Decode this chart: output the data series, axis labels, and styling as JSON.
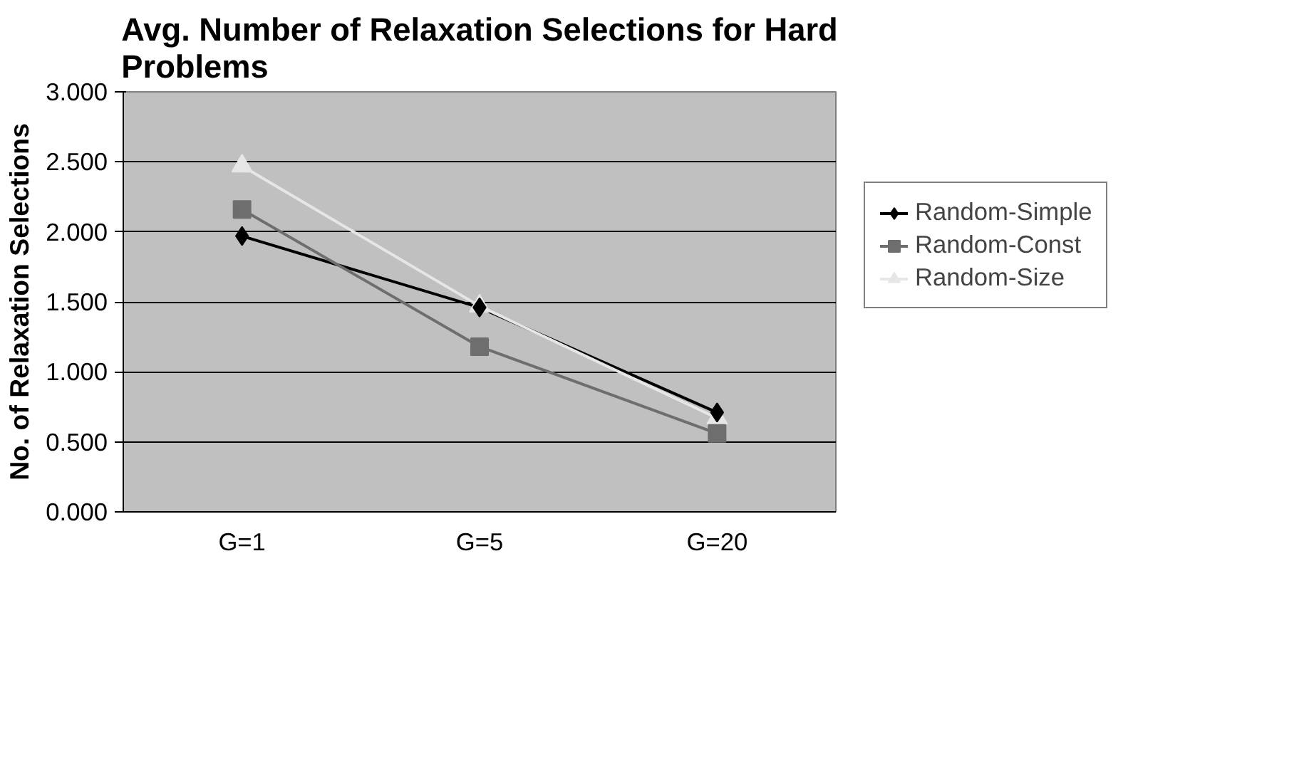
{
  "chart_data": {
    "type": "line",
    "title": "Avg. Number of Relaxation Selections for Hard Problems",
    "ylabel": "No. of Relaxation Selections",
    "categories": [
      "G=1",
      "G=5",
      "G=20"
    ],
    "series": [
      {
        "name": "Random-Simple",
        "color": "#000000",
        "marker": "diamond",
        "values": [
          1.97,
          1.46,
          0.71
        ]
      },
      {
        "name": "Random-Const",
        "color": "#6e6e6e",
        "marker": "square",
        "values": [
          2.16,
          1.18,
          0.56
        ]
      },
      {
        "name": "Random-Size",
        "color": "#e6e6e6",
        "marker": "triangle",
        "values": [
          2.47,
          1.47,
          0.67
        ]
      }
    ],
    "ylim": [
      0,
      3
    ],
    "yticks": [
      {
        "value": 0,
        "label": "0.000"
      },
      {
        "value": 0.5,
        "label": "0.500"
      },
      {
        "value": 1,
        "label": "1.000"
      },
      {
        "value": 1.5,
        "label": "1.500"
      },
      {
        "value": 2,
        "label": "2.000"
      },
      {
        "value": 2.5,
        "label": "2.500"
      },
      {
        "value": 3,
        "label": "3.000"
      }
    ],
    "grid": "y",
    "legend": "right",
    "line_style": "solid"
  }
}
